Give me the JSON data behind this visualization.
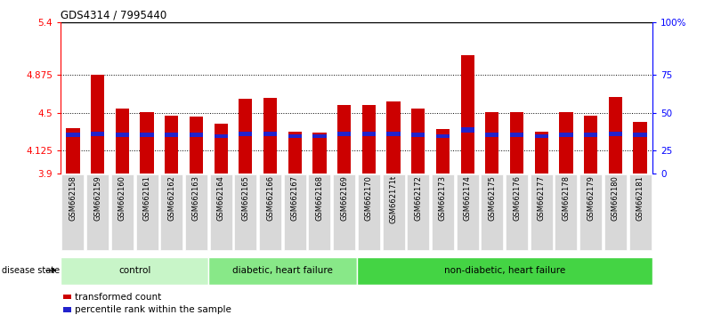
{
  "title": "GDS4314 / 7995440",
  "samples": [
    "GSM662158",
    "GSM662159",
    "GSM662160",
    "GSM662161",
    "GSM662162",
    "GSM662163",
    "GSM662164",
    "GSM662165",
    "GSM662166",
    "GSM662167",
    "GSM662168",
    "GSM662169",
    "GSM662170",
    "GSM662171t",
    "GSM662172",
    "GSM662173",
    "GSM662174",
    "GSM662175",
    "GSM662176",
    "GSM662177",
    "GSM662178",
    "GSM662179",
    "GSM662180",
    "GSM662181"
  ],
  "red_values": [
    4.35,
    4.875,
    4.54,
    4.51,
    4.47,
    4.46,
    4.39,
    4.64,
    4.65,
    4.31,
    4.3,
    4.58,
    4.58,
    4.61,
    4.54,
    4.34,
    5.07,
    4.51,
    4.51,
    4.31,
    4.51,
    4.47,
    4.66,
    4.41
  ],
  "blue_bottom": [
    4.26,
    4.27,
    4.26,
    4.26,
    4.26,
    4.26,
    4.25,
    4.27,
    4.27,
    4.25,
    4.25,
    4.27,
    4.27,
    4.27,
    4.26,
    4.25,
    4.3,
    4.26,
    4.26,
    4.25,
    4.26,
    4.26,
    4.27,
    4.26
  ],
  "blue_height": [
    0.04,
    0.04,
    0.04,
    0.04,
    0.04,
    0.04,
    0.04,
    0.04,
    0.04,
    0.04,
    0.04,
    0.04,
    0.04,
    0.04,
    0.04,
    0.04,
    0.06,
    0.04,
    0.04,
    0.04,
    0.04,
    0.04,
    0.04,
    0.04
  ],
  "ymin": 3.9,
  "ymax": 5.4,
  "yticks_left": [
    3.9,
    4.125,
    4.5,
    4.875,
    5.4
  ],
  "yticks_right_vals": [
    0,
    25,
    50,
    75,
    100
  ],
  "yticks_right_labels": [
    "0",
    "25",
    "50",
    "75",
    "100%"
  ],
  "group_defs": [
    {
      "label": "control",
      "start": 0,
      "end": 5
    },
    {
      "label": "diabetic, heart failure",
      "start": 6,
      "end": 11
    },
    {
      "label": "non-diabetic, heart failure",
      "start": 12,
      "end": 23
    }
  ],
  "group_colors": [
    "#c8f5c8",
    "#88e888",
    "#44d444"
  ],
  "legend_red": "transformed count",
  "legend_blue": "percentile rank within the sample",
  "bar_color_red": "#cc0000",
  "bar_color_blue": "#2222cc",
  "bar_width": 0.55,
  "tick_bg_color": "#d8d8d8"
}
